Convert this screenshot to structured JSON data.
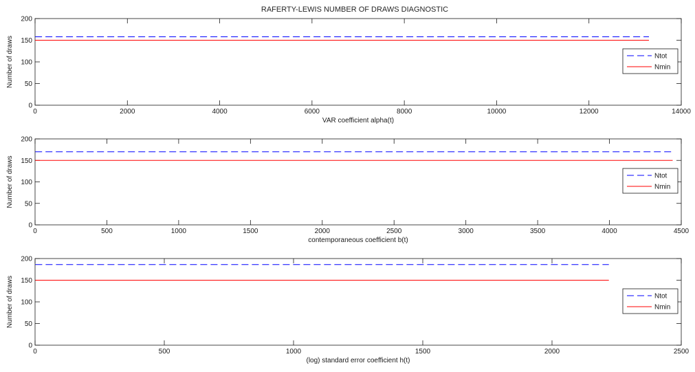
{
  "figure": {
    "title": "RAFERTY-LEWIS NUMBER OF DRAWS DIAGNOSTIC"
  },
  "chart_data": [
    {
      "type": "line",
      "xlabel": "VAR coefficient alpha(t)",
      "ylabel": "Number of draws",
      "xlim": [
        0,
        14000
      ],
      "ylim": [
        0,
        200
      ],
      "xticks": [
        0,
        2000,
        4000,
        6000,
        8000,
        10000,
        12000,
        14000
      ],
      "xtick_labels": [
        "0",
        "2000",
        "4000",
        "6000",
        "8000",
        "10000",
        "12000",
        "14000"
      ],
      "yticks": [
        0,
        50,
        100,
        150,
        200
      ],
      "ytick_labels": [
        "0",
        "50",
        "100",
        "150",
        "200"
      ],
      "grid": false,
      "legend_position": "right",
      "series": [
        {
          "name": "Ntot",
          "color": "#0000ff",
          "style": "dashed",
          "x": [
            1,
            13300
          ],
          "y": [
            158,
            158
          ]
        },
        {
          "name": "Nmin",
          "color": "#ff0000",
          "style": "solid",
          "x": [
            1,
            13300
          ],
          "y": [
            150,
            150
          ]
        }
      ]
    },
    {
      "type": "line",
      "xlabel": "contemporaneous coefficient b(t)",
      "ylabel": "Number of draws",
      "xlim": [
        0,
        4500
      ],
      "ylim": [
        0,
        200
      ],
      "xticks": [
        0,
        500,
        1000,
        1500,
        2000,
        2500,
        3000,
        3500,
        4000,
        4500
      ],
      "xtick_labels": [
        "0",
        "500",
        "1000",
        "1500",
        "2000",
        "2500",
        "3000",
        "3500",
        "4000",
        "4500"
      ],
      "yticks": [
        0,
        50,
        100,
        150,
        200
      ],
      "ytick_labels": [
        "0",
        "50",
        "100",
        "150",
        "200"
      ],
      "grid": false,
      "legend_position": "right",
      "series": [
        {
          "name": "Ntot",
          "color": "#0000ff",
          "style": "dashed",
          "x": [
            1,
            4440
          ],
          "y": [
            170,
            170
          ]
        },
        {
          "name": "Nmin",
          "color": "#ff0000",
          "style": "solid",
          "x": [
            1,
            4440
          ],
          "y": [
            150,
            150
          ]
        }
      ]
    },
    {
      "type": "line",
      "xlabel": "(log) standard error coefficient h(t)",
      "ylabel": "Number of draws",
      "xlim": [
        0,
        2500
      ],
      "ylim": [
        0,
        200
      ],
      "xticks": [
        0,
        500,
        1000,
        1500,
        2000,
        2500
      ],
      "xtick_labels": [
        "0",
        "500",
        "1000",
        "1500",
        "2000",
        "2500"
      ],
      "yticks": [
        0,
        50,
        100,
        150,
        200
      ],
      "ytick_labels": [
        "0",
        "50",
        "100",
        "150",
        "200"
      ],
      "grid": false,
      "legend_position": "right",
      "series": [
        {
          "name": "Ntot",
          "color": "#0000ff",
          "style": "dashed",
          "x": [
            1,
            2220
          ],
          "y": [
            186,
            186
          ]
        },
        {
          "name": "Nmin",
          "color": "#ff0000",
          "style": "solid",
          "x": [
            1,
            2220
          ],
          "y": [
            150,
            150
          ]
        }
      ]
    }
  ]
}
